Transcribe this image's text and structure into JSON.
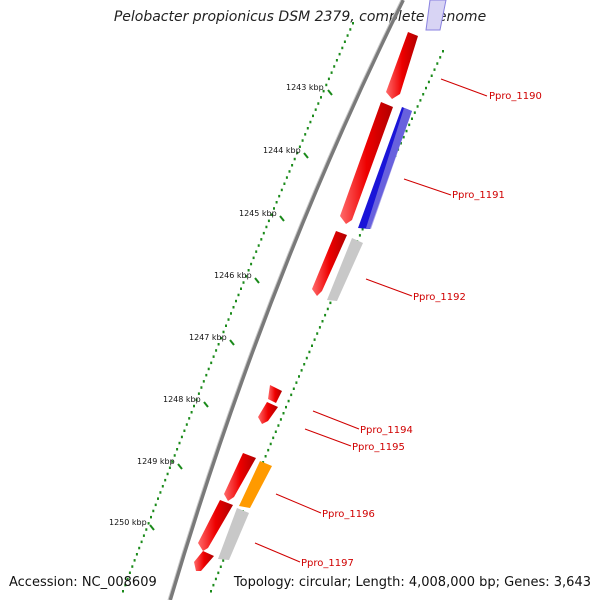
{
  "title": "Pelobacter propionicus DSM 2379, complete genome",
  "accession": "Accession: NC_008609",
  "topology": "Topology: circular; Length: 4,008,000 bp; Genes: 3,643",
  "kbp_labels": [
    "1243 kbp",
    "1244 kbp",
    "1245 kbp",
    "1246 kbp",
    "1247 kbp",
    "1248 kbp",
    "1249 kbp",
    "1250 kbp"
  ],
  "gene_labels": [
    "Ppro_1190",
    "Ppro_1191",
    "Ppro_1192",
    "Ppro_1194",
    "Ppro_1195",
    "Ppro_1196",
    "Ppro_1197"
  ],
  "colors": {
    "backbone": "#8a8a8a",
    "tick": "#1a8a1a",
    "cds": "#ee0000",
    "blue_feature": "#1a14d8",
    "lavender_feature": "#8a82e0",
    "grey_feature": "#c8c8c8",
    "orange_feature": "#ff9a00",
    "label": "#d00000"
  }
}
